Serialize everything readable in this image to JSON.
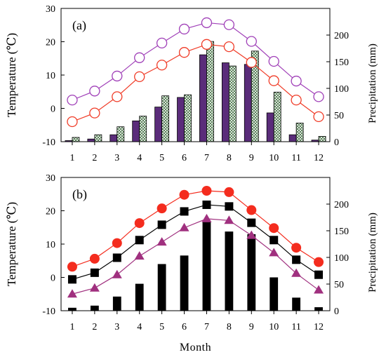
{
  "chart_data": [
    {
      "type": "bar",
      "panel_label": "(a)",
      "categories": [
        "1",
        "2",
        "3",
        "4",
        "5",
        "6",
        "7",
        "8",
        "9",
        "10",
        "11",
        "12"
      ],
      "ylabel": "Temperature (℃)",
      "ylabel_right": "Precipitation (mm)",
      "ylim": [
        -10,
        30
      ],
      "yticks": [
        -10,
        0,
        10,
        20,
        30
      ],
      "ylim_right": [
        0,
        250
      ],
      "yticks_right": [
        0,
        50,
        100,
        150,
        200
      ],
      "line_series": [
        {
          "values": [
            2.5,
            5.2,
            9.7,
            15.2,
            19.6,
            23.8,
            25.7,
            25.1,
            20.1,
            14.1,
            8.2,
            3.5
          ],
          "color": "#a040b8",
          "marker": "open-circle"
        },
        {
          "values": [
            -4.0,
            -1.4,
            3.5,
            9.5,
            13.0,
            16.8,
            19.2,
            18.5,
            13.8,
            8.3,
            2.5,
            -2.5
          ],
          "color": "#f03c28",
          "marker": "open-circle"
        }
      ],
      "bar_series": [
        {
          "values": [
            2,
            5,
            13,
            39,
            65,
            83,
            163,
            148,
            145,
            54,
            13,
            3
          ],
          "fill": "#5a2c7a",
          "pattern": "solid"
        },
        {
          "values": [
            8,
            13,
            28,
            48,
            86,
            88,
            188,
            142,
            170,
            93,
            35,
            10
          ],
          "fill": "#ffffff",
          "pattern": "crosshatch"
        }
      ]
    },
    {
      "type": "bar",
      "panel_label": "(b)",
      "categories": [
        "1",
        "2",
        "3",
        "4",
        "5",
        "6",
        "7",
        "8",
        "9",
        "10",
        "11",
        "12"
      ],
      "xlabel": "Month",
      "ylabel": "Temperature (℃)",
      "ylabel_right": "Precipitation (mm)",
      "ylim": [
        -10,
        30
      ],
      "yticks": [
        -10,
        0,
        10,
        20,
        30
      ],
      "ylim_right": [
        0,
        250
      ],
      "yticks_right": [
        0,
        50,
        100,
        150,
        200
      ],
      "line_series": [
        {
          "values": [
            3.2,
            5.6,
            10.3,
            16.3,
            20.7,
            24.8,
            26.0,
            25.6,
            20.2,
            14.8,
            8.9,
            4.6
          ],
          "color": "#f42c1e",
          "marker": "filled-circle"
        },
        {
          "values": [
            -0.6,
            1.4,
            5.9,
            11.2,
            15.8,
            19.8,
            21.8,
            21.3,
            16.4,
            11.2,
            5.3,
            0.8
          ],
          "color": "#000000",
          "marker": "filled-square"
        },
        {
          "values": [
            -5.0,
            -3.2,
            0.8,
            6.4,
            10.6,
            14.9,
            17.6,
            17.1,
            12.6,
            7.4,
            1.2,
            -3.8
          ],
          "color": "#a0307f",
          "marker": "filled-triangle"
        }
      ],
      "bar_series": [
        {
          "values": [
            5,
            9,
            26,
            50,
            87,
            103,
            168,
            148,
            143,
            62,
            24,
            6
          ],
          "fill": "#000000",
          "pattern": "solid"
        }
      ]
    }
  ]
}
